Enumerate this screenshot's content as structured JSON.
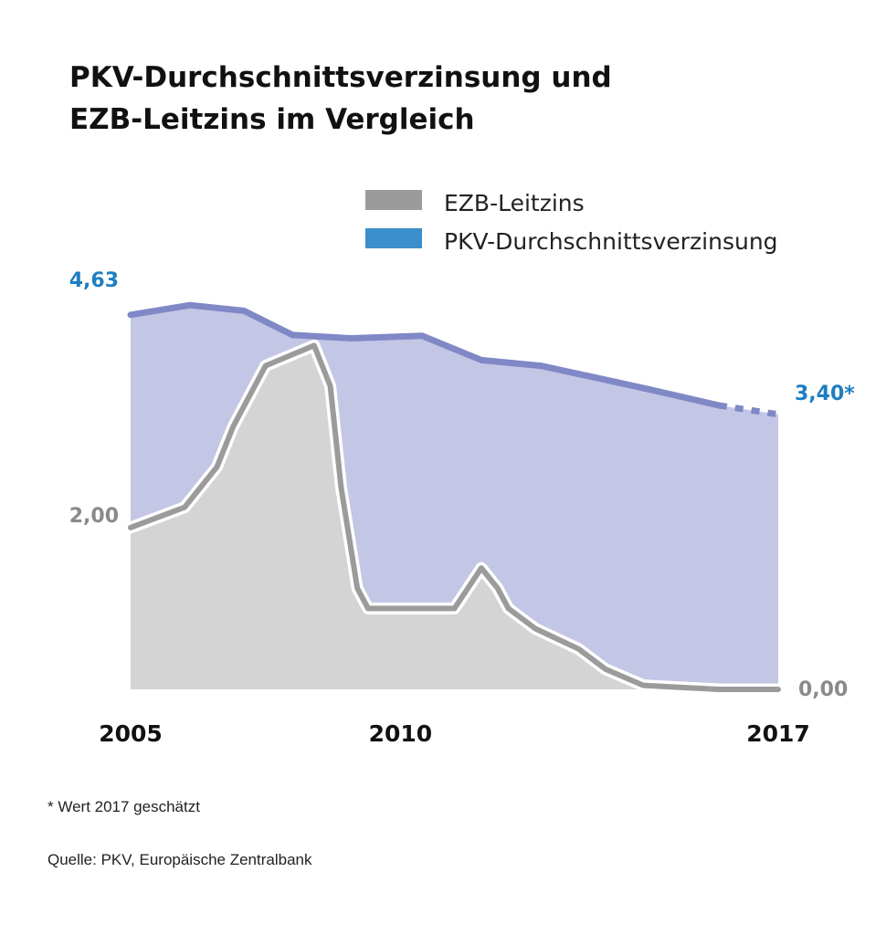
{
  "title": {
    "line1": "PKV-Durchschnittsverzinsung und",
    "line2": "EZB-Leitzins im Vergleich"
  },
  "legend": [
    {
      "label": "EZB-Leitzins",
      "color": "#9b9b9b"
    },
    {
      "label": "PKV-Durchschnittsverzinsung",
      "color": "#3a8fcc"
    }
  ],
  "annotations": {
    "pkv_start": "4,63",
    "pkv_end": "3,40*",
    "ezb_start": "2,00",
    "ezb_end": "0,00"
  },
  "footnote": "* Wert 2017 geschätzt",
  "source": "Quelle: PKV, Europäische Zentralbank",
  "colors": {
    "pkv_fill": "#c4c6e6",
    "pkv_line": "#8088c6",
    "ezb_fill": "#d4d4d4",
    "ezb_line": "#9b9b9b",
    "label_blue": "#1f7dc2",
    "label_gray": "#8a8a8a"
  },
  "chart_data": {
    "type": "area",
    "title": "PKV-Durchschnittsverzinsung und EZB-Leitzins im Vergleich",
    "xlabel": "",
    "ylabel": "",
    "xlim": [
      2005,
      2017
    ],
    "ylim": [
      0,
      5
    ],
    "x_ticks": [
      {
        "value": 2005,
        "label": "2005"
      },
      {
        "value": 2010,
        "label": "2010"
      },
      {
        "value": 2017,
        "label": "2017"
      }
    ],
    "series": [
      {
        "name": "PKV-Durchschnittsverzinsung",
        "points": [
          [
            2005.0,
            4.63
          ],
          [
            2006.1,
            4.75
          ],
          [
            2007.1,
            4.68
          ],
          [
            2008.0,
            4.38
          ],
          [
            2009.1,
            4.34
          ],
          [
            2010.4,
            4.37
          ],
          [
            2011.5,
            4.07
          ],
          [
            2012.6,
            4.0
          ],
          [
            2013.5,
            3.87
          ],
          [
            2014.6,
            3.71
          ],
          [
            2015.9,
            3.51
          ],
          [
            2017.0,
            3.4
          ]
        ],
        "estimated_from": 2015.9
      },
      {
        "name": "EZB-Leitzins",
        "points": [
          [
            2005.0,
            2.0
          ],
          [
            2006.0,
            2.25
          ],
          [
            2006.6,
            2.75
          ],
          [
            2006.9,
            3.25
          ],
          [
            2007.5,
            4.0
          ],
          [
            2008.4,
            4.25
          ],
          [
            2008.7,
            3.75
          ],
          [
            2008.9,
            2.5
          ],
          [
            2009.2,
            1.25
          ],
          [
            2009.4,
            1.0
          ],
          [
            2010.0,
            1.0
          ],
          [
            2011.0,
            1.0
          ],
          [
            2011.5,
            1.5
          ],
          [
            2011.8,
            1.25
          ],
          [
            2012.0,
            1.0
          ],
          [
            2012.5,
            0.75
          ],
          [
            2013.3,
            0.5
          ],
          [
            2013.8,
            0.25
          ],
          [
            2014.5,
            0.05
          ],
          [
            2015.9,
            0.0
          ],
          [
            2017.0,
            0.0
          ]
        ]
      }
    ]
  }
}
